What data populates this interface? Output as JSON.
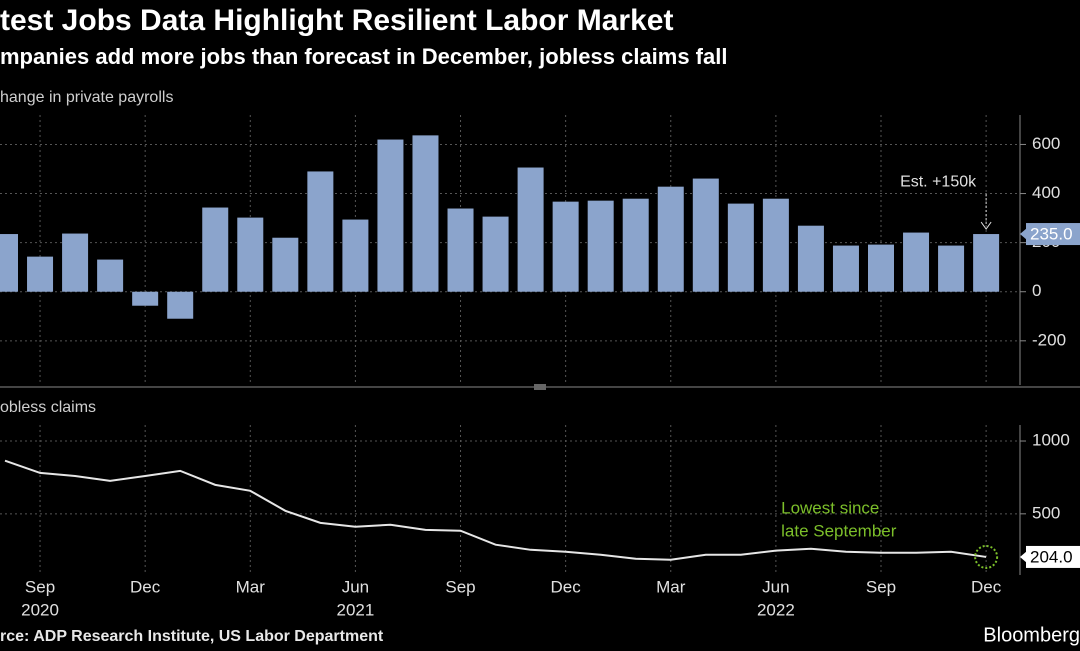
{
  "chart_data": [
    {
      "type": "bar",
      "title": "test Jobs Data Highlight Resilient Labor Market",
      "subtitle": "mpanies add more jobs than forecast in December, jobless claims fall",
      "y_label": "hange in private payrolls",
      "values": [
        235,
        143,
        237,
        131,
        -57,
        -110,
        343,
        302,
        220,
        490,
        294,
        620,
        637,
        339,
        306,
        506,
        367,
        371,
        379,
        428,
        461,
        359,
        379,
        269,
        188,
        192,
        241,
        188,
        235
      ],
      "value_labels": [
        null,
        null,
        null,
        null,
        null,
        null,
        null,
        null,
        null,
        null,
        null,
        null,
        null,
        null,
        null,
        null,
        null,
        null,
        null,
        null,
        null,
        null,
        null,
        null,
        null,
        null,
        null,
        null,
        "235.0"
      ],
      "color": "#8ba4cc",
      "ylim": [
        -380,
        720
      ],
      "yticks": [
        -200,
        0,
        200,
        400,
        600
      ],
      "grid": true,
      "annotation": "Est. +150k"
    },
    {
      "type": "line",
      "y_label": "obless claims",
      "categories": [
        null,
        "Sep",
        null,
        null,
        "Dec",
        null,
        null,
        "Mar",
        null,
        null,
        "Jun",
        null,
        null,
        "Sep",
        null,
        null,
        "Dec",
        null,
        null,
        "Mar",
        null,
        null,
        "Jun",
        null,
        null,
        "Sep",
        null,
        null,
        "Dec"
      ],
      "years": [
        null,
        "2020",
        null,
        null,
        null,
        null,
        null,
        null,
        null,
        null,
        "2021",
        null,
        null,
        null,
        null,
        null,
        null,
        null,
        null,
        null,
        null,
        null,
        "2022",
        null,
        null,
        null,
        null,
        null,
        null
      ],
      "values": [
        865,
        781,
        760,
        726,
        760,
        795,
        699,
        658,
        521,
        438,
        411,
        425,
        390,
        384,
        288,
        253,
        240,
        219,
        192,
        185,
        219,
        219,
        247,
        260,
        240,
        233,
        233,
        240,
        204
      ],
      "value_labels": [
        null,
        null,
        null,
        null,
        null,
        null,
        null,
        null,
        null,
        null,
        null,
        null,
        null,
        null,
        null,
        null,
        null,
        null,
        null,
        null,
        null,
        null,
        null,
        null,
        null,
        null,
        null,
        null,
        "204.0"
      ],
      "color": "#e6e6e6",
      "ylim": [
        80,
        1110
      ],
      "yticks": [
        500,
        1000
      ],
      "grid": true,
      "annotation": [
        "Lowest since",
        "late September"
      ],
      "annotation_color": "#7cbf2a",
      "source": "rce: ADP Research Institute, US Labor Department",
      "brand": "Bloomberg"
    }
  ]
}
